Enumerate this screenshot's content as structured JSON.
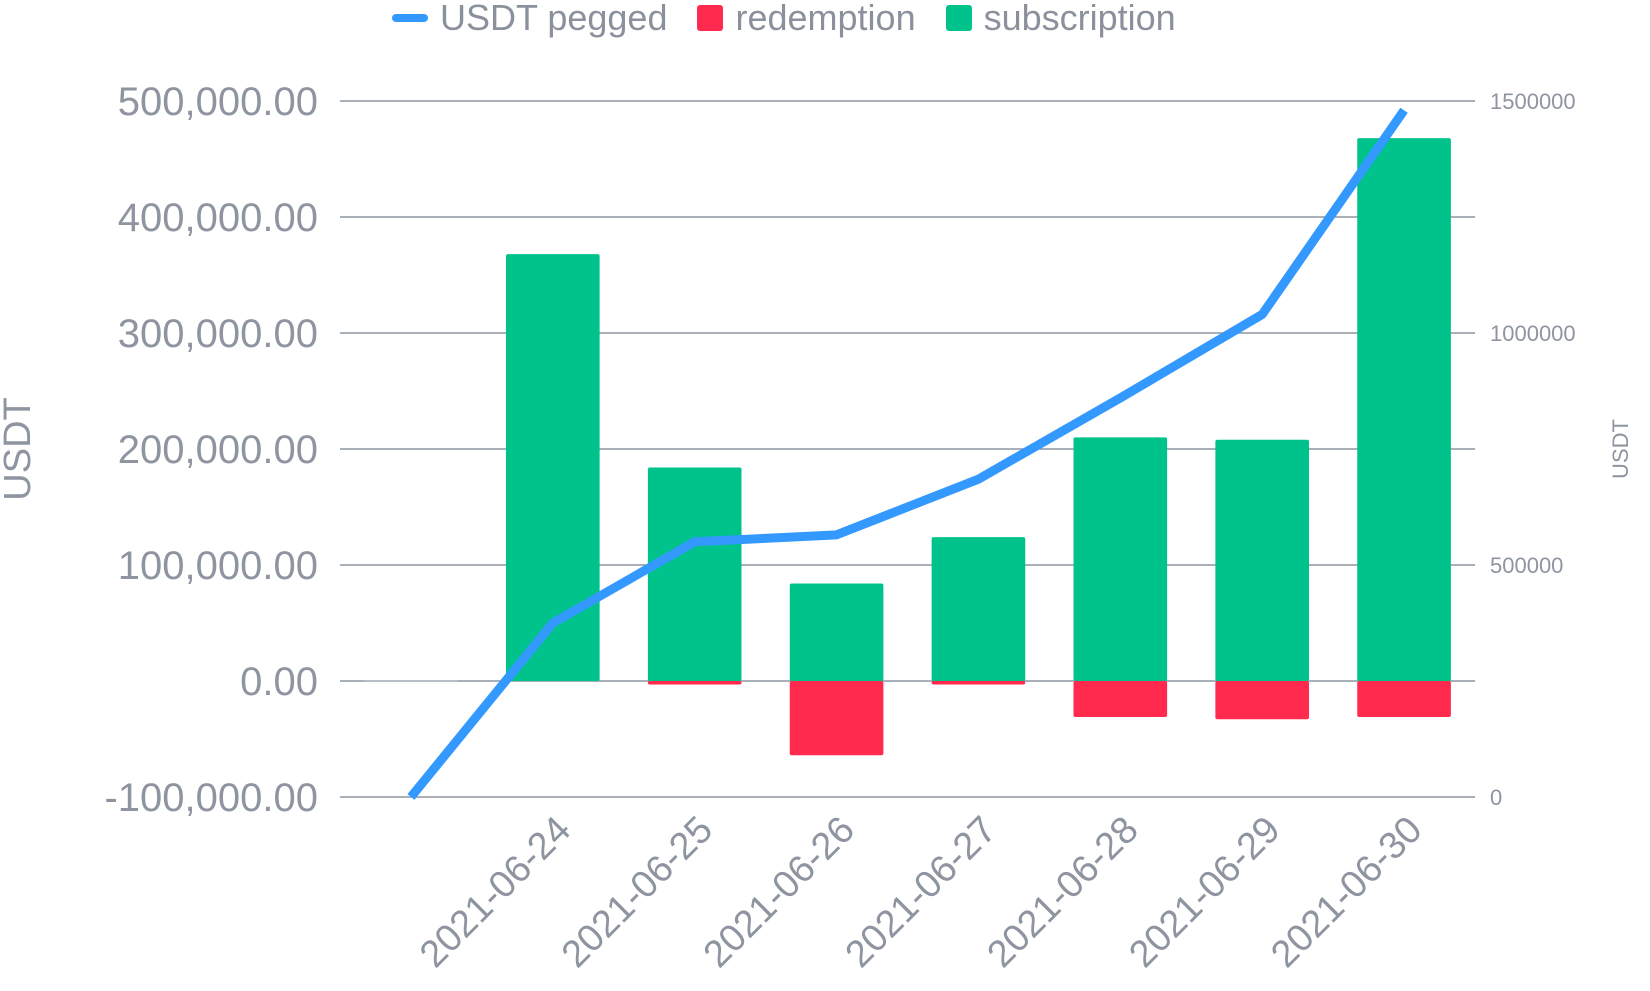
{
  "chart_data": {
    "type": "bar",
    "categories": [
      "",
      "2021-06-24",
      "2021-06-25",
      "2021-06-26",
      "2021-06-27",
      "2021-06-28",
      "2021-06-29",
      "2021-06-30"
    ],
    "series": [
      {
        "name": "USDT pegged",
        "type": "line",
        "axis": "right",
        "color": "#3399ff",
        "values": [
          0,
          375000,
          550000,
          565000,
          685000,
          860000,
          1040000,
          1480000
        ]
      },
      {
        "name": "redemption",
        "type": "bar",
        "axis": "left",
        "color": "#ff2a4e",
        "values": [
          0,
          0,
          -3000,
          -64000,
          -3000,
          -31000,
          -33000,
          -31000
        ]
      },
      {
        "name": "subscription",
        "type": "bar",
        "axis": "left",
        "color": "#00c28b",
        "values": [
          0,
          368000,
          184000,
          84000,
          124000,
          210000,
          208000,
          468000
        ]
      }
    ],
    "left_axis": {
      "label": "USDT",
      "ylim": [
        -100000,
        500000
      ],
      "ticks": [
        "-100,000.00",
        "0.00",
        "100,000.00",
        "200,000.00",
        "300,000.00",
        "400,000.00",
        "500,000.00"
      ]
    },
    "right_axis": {
      "label": "USDT",
      "ylim": [
        0,
        1500000
      ],
      "ticks": [
        "0",
        "500000",
        "1000000",
        "1500000"
      ]
    },
    "grid": true,
    "legend_position": "top"
  }
}
